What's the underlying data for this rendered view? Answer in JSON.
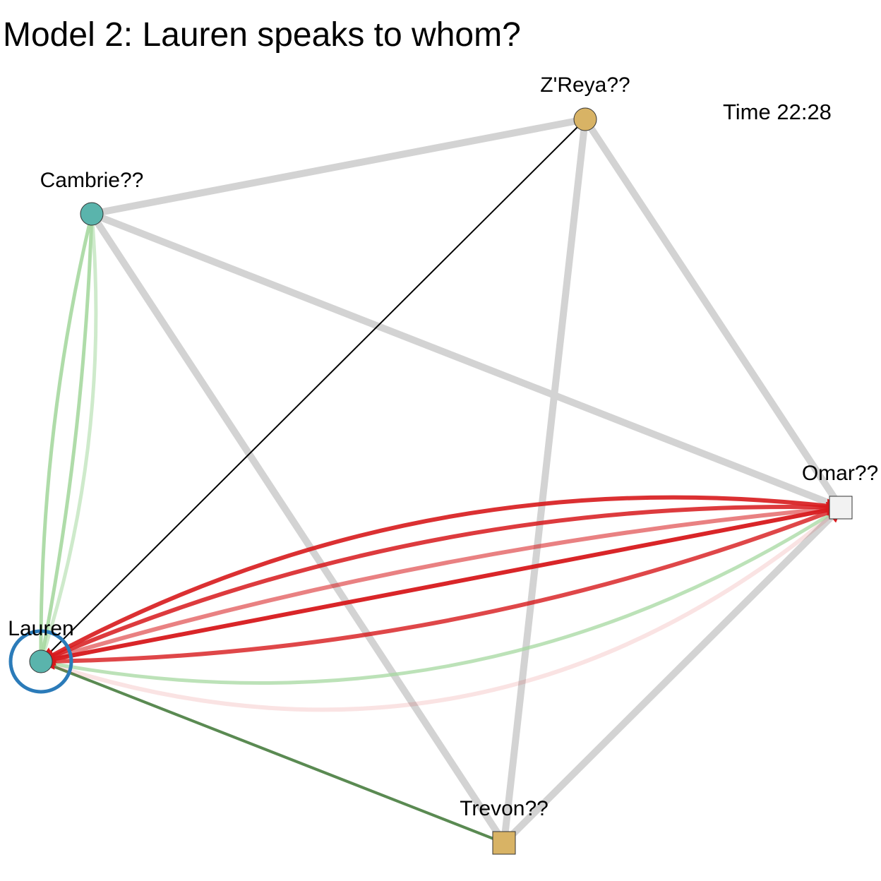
{
  "title": "Model 2: Lauren speaks to whom?",
  "time_label": "Time 22:28",
  "colors": {
    "background_edge": "#d3d3d3",
    "proposed_edge": "#000000",
    "green_edge": "#a6d8a0",
    "dark_green_edge": "#5a8a52",
    "red_edge": "#d7191c",
    "focus_ring": "#2b7bb9",
    "teal_node": "#5ab4ac",
    "tan_node": "#d8b365",
    "white_node": "#f2f2f2"
  },
  "nodes": [
    {
      "id": "lauren",
      "label": "Lauren",
      "shape": "circle",
      "color": "teal_node",
      "focus": true
    },
    {
      "id": "cambrie",
      "label": "Cambrie??",
      "shape": "circle",
      "color": "teal_node"
    },
    {
      "id": "zreya",
      "label": "Z'Reya??",
      "shape": "circle",
      "color": "tan_node"
    },
    {
      "id": "omar",
      "label": "Omar??",
      "shape": "square",
      "color": "white_node"
    },
    {
      "id": "trevon",
      "label": "Trevon??",
      "shape": "square",
      "color": "tan_node"
    }
  ],
  "edges": [
    {
      "from": "cambrie",
      "to": "zreya",
      "type": "background"
    },
    {
      "from": "cambrie",
      "to": "omar",
      "type": "background"
    },
    {
      "from": "cambrie",
      "to": "trevon",
      "type": "background"
    },
    {
      "from": "zreya",
      "to": "omar",
      "type": "background"
    },
    {
      "from": "zreya",
      "to": "trevon",
      "type": "background"
    },
    {
      "from": "omar",
      "to": "trevon",
      "type": "background"
    },
    {
      "from": "lauren",
      "to": "zreya",
      "type": "proposed"
    },
    {
      "from": "lauren",
      "to": "trevon",
      "type": "dark_green"
    },
    {
      "from": "lauren",
      "to": "cambrie",
      "type": "green",
      "curve": 0.1,
      "opacity": 0.55
    },
    {
      "from": "lauren",
      "to": "cambrie",
      "type": "green",
      "curve": 0.04,
      "opacity": 0.9
    },
    {
      "from": "lauren",
      "to": "cambrie",
      "type": "green",
      "curve": -0.06,
      "opacity": 0.9
    },
    {
      "from": "lauren",
      "to": "omar",
      "type": "red",
      "curve": 0.28,
      "opacity": 0.12
    },
    {
      "from": "lauren",
      "to": "omar",
      "type": "green",
      "curve": 0.2,
      "opacity": 0.75
    },
    {
      "from": "omar",
      "to": "lauren",
      "type": "red",
      "curve": -0.09,
      "opacity": 0.8
    },
    {
      "from": "lauren",
      "to": "omar",
      "type": "red",
      "curve": 0.0,
      "opacity": 0.95
    },
    {
      "from": "omar",
      "to": "lauren",
      "type": "red",
      "curve": 0.05,
      "opacity": 0.55
    },
    {
      "from": "lauren",
      "to": "omar",
      "type": "red",
      "curve": -0.11,
      "opacity": 0.85
    },
    {
      "from": "omar",
      "to": "lauren",
      "type": "red",
      "curve": 0.16,
      "opacity": 0.9
    }
  ]
}
